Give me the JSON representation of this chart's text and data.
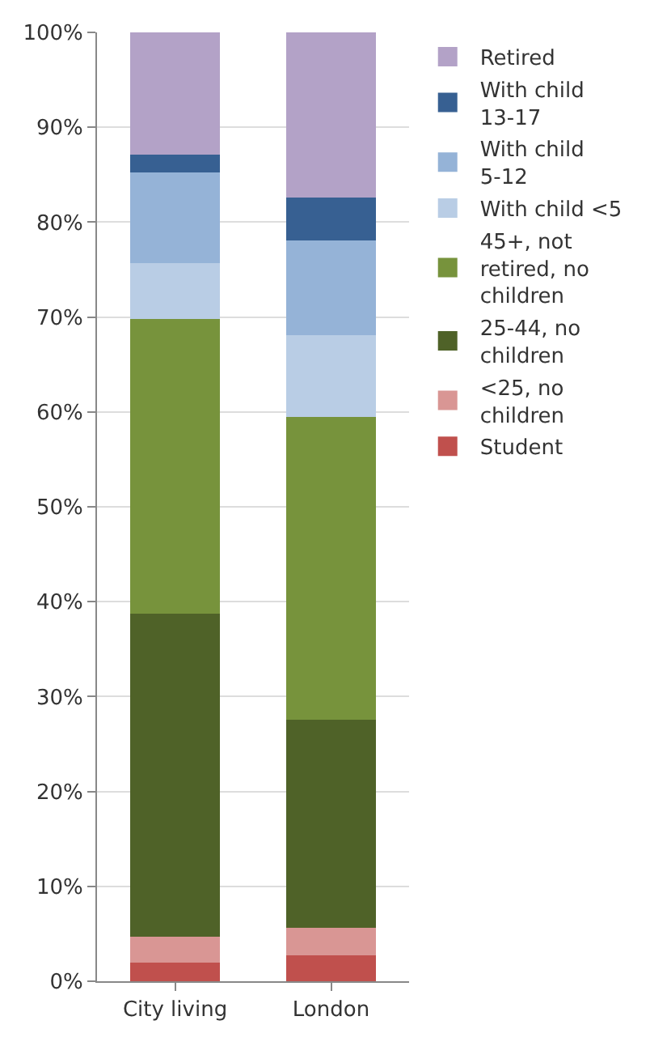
{
  "chart_data": {
    "type": "bar",
    "stacked": true,
    "categories": [
      "City living",
      "London"
    ],
    "series": [
      {
        "name": "Student",
        "color": "#c0504d",
        "values": [
          2.0,
          2.7
        ]
      },
      {
        "name": "<25, no children",
        "color": "#d99694",
        "values": [
          2.7,
          2.9
        ]
      },
      {
        "name": "25-44, no children",
        "color": "#4f6228",
        "values": [
          34.0,
          22.0
        ]
      },
      {
        "name": "45+, not retired, no children",
        "color": "#77933c",
        "values": [
          31.1,
          31.9
        ]
      },
      {
        "name": "With child <5",
        "color": "#b9cde5",
        "values": [
          5.9,
          8.6
        ]
      },
      {
        "name": "With child 5-12",
        "color": "#95b3d7",
        "values": [
          9.5,
          10.0
        ]
      },
      {
        "name": "With child 13-17",
        "color": "#376092",
        "values": [
          1.9,
          4.5
        ]
      },
      {
        "name": "Retired",
        "color": "#b3a2c7",
        "values": [
          12.9,
          17.4
        ]
      }
    ],
    "ylim": [
      0,
      100
    ],
    "yticks": [
      {
        "value": 0,
        "label": "0%"
      },
      {
        "value": 10,
        "label": "10%"
      },
      {
        "value": 20,
        "label": "20%"
      },
      {
        "value": 30,
        "label": "30%"
      },
      {
        "value": 40,
        "label": "40%"
      },
      {
        "value": 50,
        "label": "50%"
      },
      {
        "value": 60,
        "label": "60%"
      },
      {
        "value": 70,
        "label": "70%"
      },
      {
        "value": 80,
        "label": "80%"
      },
      {
        "value": 90,
        "label": "90%"
      },
      {
        "value": 100,
        "label": "100%"
      }
    ],
    "grid": "y",
    "legend": "right"
  }
}
